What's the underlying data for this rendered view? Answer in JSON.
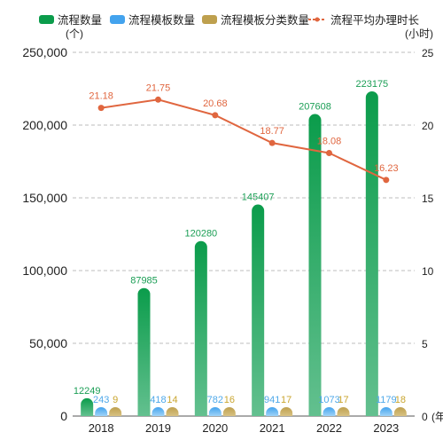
{
  "chart_data": {
    "type": "bar",
    "categories": [
      "2018",
      "2019",
      "2020",
      "2021",
      "2022",
      "2023"
    ],
    "series": [
      {
        "name": "流程数量",
        "kind": "bar",
        "axis": "left",
        "values": [
          12249,
          87985,
          120280,
          145407,
          207608,
          223175
        ],
        "label_color": "#1b9e55"
      },
      {
        "name": "流程模板数量",
        "kind": "bar",
        "axis": "left",
        "values": [
          243,
          418,
          782,
          941,
          1073,
          1179
        ],
        "label_color": "#4ea8e9"
      },
      {
        "name": "流程模板分类数量",
        "kind": "bar",
        "axis": "left",
        "values": [
          9,
          14,
          16,
          17,
          17,
          18
        ],
        "label_color": "#c9a52f"
      },
      {
        "name": "流程平均办理时长",
        "kind": "line",
        "axis": "right",
        "values": [
          21.18,
          21.75,
          20.68,
          18.77,
          18.08,
          16.23
        ],
        "label_color": "#e0663f"
      }
    ],
    "y_left": {
      "unit": "(个)",
      "min": 0,
      "max": 250000,
      "ticks": [
        "0",
        "50,000",
        "100,000",
        "150,000",
        "200,000",
        "250,000"
      ]
    },
    "y_right": {
      "unit": "(小时)",
      "min": 0,
      "max": 25,
      "ticks": [
        "0",
        "5",
        "10",
        "15",
        "20",
        "25"
      ]
    },
    "x_unit": "(年",
    "legend_position": "top-right",
    "grid": "dashed-horizontal",
    "colors": {
      "bar1_top": "#0b9c4b",
      "bar1_bottom": "#63c08f",
      "bar2_top": "#43a3ee",
      "bar2_bottom": "#9fd3f7",
      "bar3_top": "#bea04e",
      "bar3_bottom": "#d8c283",
      "line": "#e0663f",
      "grid": "#bdbdbd",
      "axis_text": "#222222"
    }
  }
}
